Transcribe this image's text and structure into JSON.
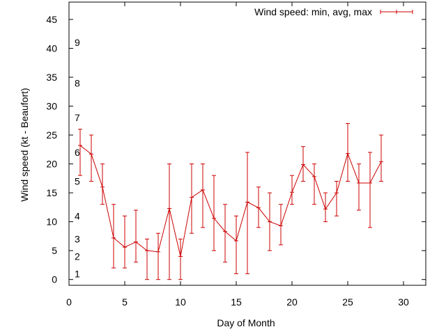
{
  "chart_data": {
    "type": "line",
    "title": "",
    "xlabel": "Day of Month",
    "ylabel": "Wind speed (kt - Beaufort)",
    "xlim": [
      0,
      32
    ],
    "ylim": [
      -1,
      48
    ],
    "x_ticks": [
      0,
      5,
      10,
      15,
      20,
      25,
      30
    ],
    "y_ticks": [
      0,
      5,
      10,
      15,
      20,
      25,
      30,
      35,
      40,
      45
    ],
    "grid": false,
    "legend_position": "top-right",
    "series_color": "#cc0000",
    "beaufort_labels": [
      {
        "label": "1",
        "y": 1
      },
      {
        "label": "2",
        "y": 4
      },
      {
        "label": "3",
        "y": 7
      },
      {
        "label": "4",
        "y": 11
      },
      {
        "label": "5",
        "y": 17
      },
      {
        "label": "6",
        "y": 22
      },
      {
        "label": "7",
        "y": 28
      },
      {
        "label": "8",
        "y": 34
      },
      {
        "label": "9",
        "y": 41
      }
    ],
    "series": [
      {
        "name": "Wind speed: min, avg, max",
        "x": [
          1,
          2,
          3,
          4,
          5,
          6,
          7,
          8,
          9,
          10,
          11,
          12,
          13,
          14,
          15,
          16,
          17,
          18,
          19,
          20,
          21,
          22,
          23,
          24,
          25,
          26,
          27,
          28
        ],
        "avg": [
          23.2,
          21.7,
          16,
          7.2,
          5.6,
          6.5,
          5,
          4.8,
          12.3,
          4,
          14.2,
          15.5,
          10.6,
          8.3,
          6.7,
          13.4,
          12.4,
          10,
          9.3,
          15.1,
          19.9,
          17.8,
          12.2,
          15,
          21.8,
          16.7,
          16.7,
          20.4
        ],
        "min": [
          18,
          17,
          13,
          2,
          2,
          3,
          0,
          0,
          0,
          0,
          8,
          9,
          5,
          3,
          1,
          1,
          9,
          5,
          6,
          13,
          17,
          13,
          10,
          11,
          17,
          12,
          9,
          17
        ],
        "max": [
          26,
          25,
          20,
          13,
          11,
          12,
          7,
          8,
          20,
          7,
          20,
          20,
          18,
          13,
          11,
          22,
          16,
          15,
          13,
          18,
          23,
          20,
          15,
          17,
          27,
          20,
          22,
          25
        ]
      }
    ]
  }
}
